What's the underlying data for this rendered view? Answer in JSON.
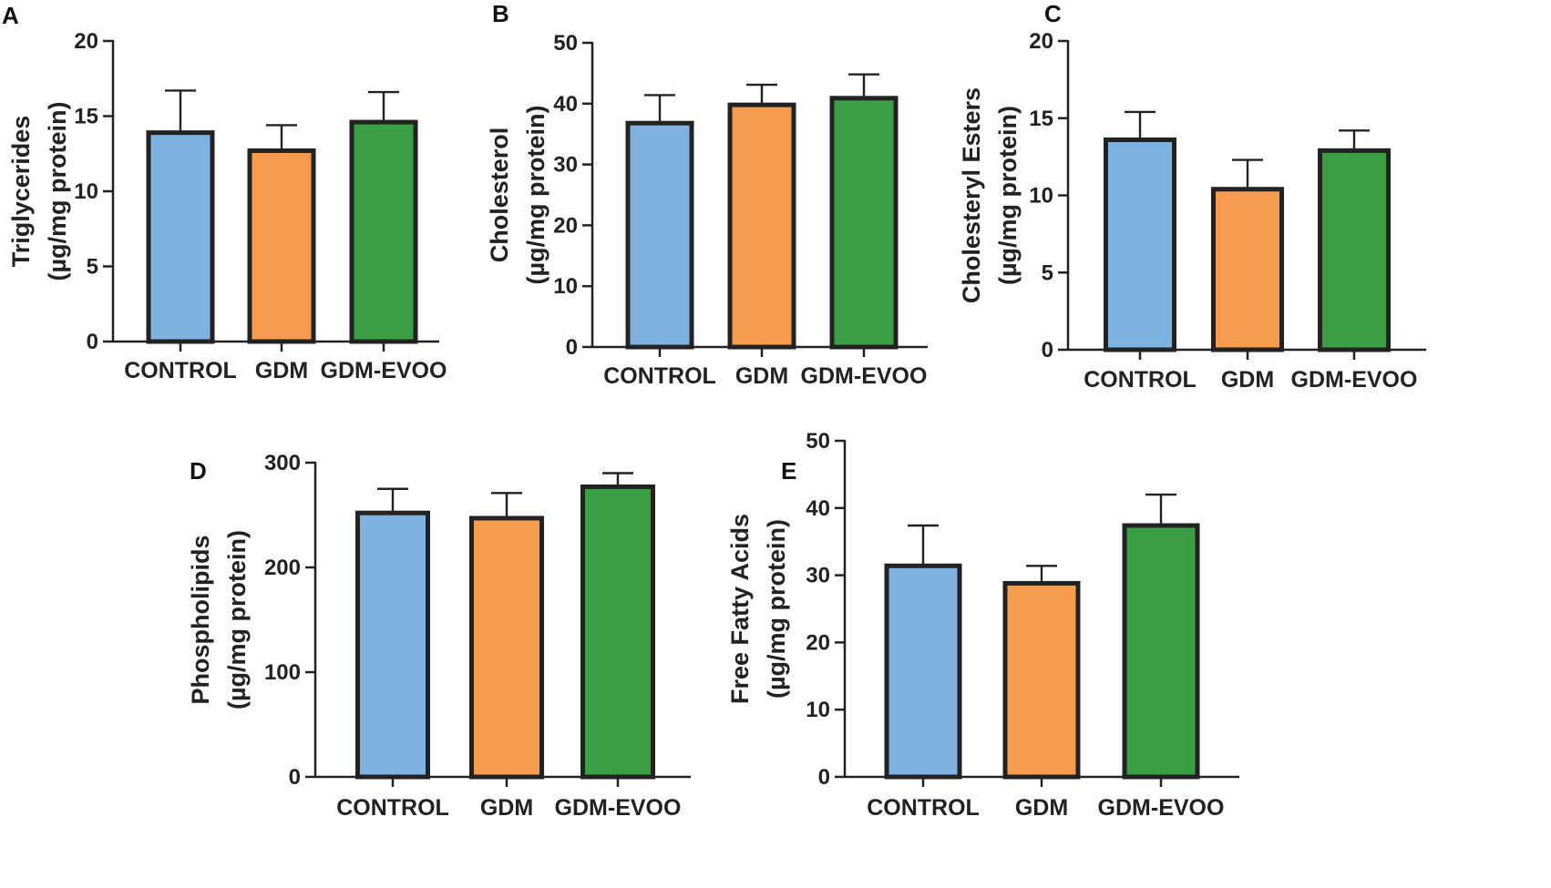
{
  "chart_data": [
    {
      "panel": "A",
      "type": "bar",
      "categories": [
        "CONTROL",
        "GDM",
        "GDM-EVOO"
      ],
      "values": [
        13.9,
        12.7,
        14.6
      ],
      "errors": [
        2.8,
        1.7,
        2.0
      ],
      "ylabel": "Triglycerides",
      "ylabel_unit": "(µg/mg protein)",
      "ylim": [
        0,
        20
      ],
      "yticks": [
        0,
        5,
        10,
        15,
        20
      ],
      "colors": [
        "#7fb2e1",
        "#f79c4e",
        "#3a9e45"
      ]
    },
    {
      "panel": "B",
      "type": "bar",
      "categories": [
        "CONTROL",
        "GDM",
        "GDM-EVOO"
      ],
      "values": [
        36.8,
        39.8,
        40.9
      ],
      "errors": [
        4.6,
        3.3,
        3.9
      ],
      "ylabel": "Cholesterol",
      "ylabel_unit": "(µg/mg protein)",
      "ylim": [
        0,
        50
      ],
      "yticks": [
        0,
        10,
        20,
        30,
        40,
        50
      ],
      "colors": [
        "#7fb2e1",
        "#f79c4e",
        "#3a9e45"
      ]
    },
    {
      "panel": "C",
      "type": "bar",
      "categories": [
        "CONTROL",
        "GDM",
        "GDM-EVOO"
      ],
      "values": [
        13.6,
        10.4,
        12.9
      ],
      "errors": [
        1.8,
        1.9,
        1.3
      ],
      "ylabel": "Cholesteryl Esters",
      "ylabel_unit": "(µg/mg protein)",
      "ylim": [
        0,
        20
      ],
      "yticks": [
        0,
        5,
        10,
        15,
        20
      ],
      "colors": [
        "#7fb2e1",
        "#f79c4e",
        "#3a9e45"
      ]
    },
    {
      "panel": "D",
      "type": "bar",
      "categories": [
        "CONTROL",
        "GDM",
        "GDM-EVOO"
      ],
      "values": [
        252,
        247,
        277
      ],
      "errors": [
        23,
        24,
        13
      ],
      "ylabel": "Phospholipids",
      "ylabel_unit": "(µg/mg protein)",
      "ylim": [
        0,
        300
      ],
      "yticks": [
        0,
        100,
        200,
        300
      ],
      "colors": [
        "#7fb2e1",
        "#f79c4e",
        "#3a9e45"
      ]
    },
    {
      "panel": "E",
      "type": "bar",
      "categories": [
        "CONTROL",
        "GDM",
        "GDM-EVOO"
      ],
      "values": [
        31.4,
        28.8,
        37.4
      ],
      "errors": [
        6.0,
        2.6,
        4.6
      ],
      "ylabel": "Free Fatty Acids",
      "ylabel_unit": "(µg/mg protein)",
      "ylim": [
        0,
        50
      ],
      "yticks": [
        0,
        10,
        20,
        30,
        40,
        50
      ],
      "colors": [
        "#7fb2e1",
        "#f79c4e",
        "#3a9e45"
      ]
    }
  ]
}
